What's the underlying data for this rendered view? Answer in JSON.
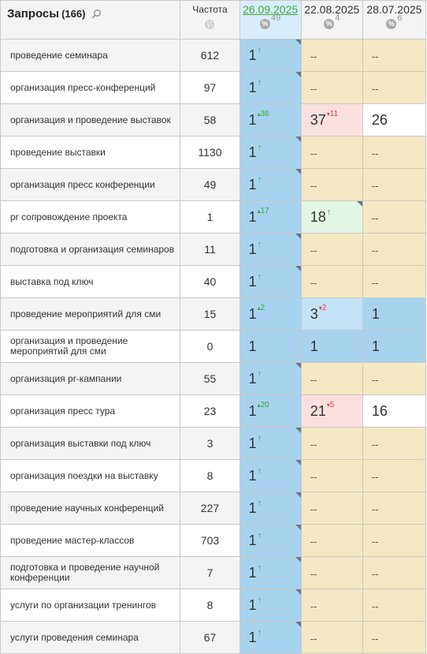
{
  "header": {
    "title": "Запросы",
    "count": "(166)",
    "freq_label": "Частота",
    "dates": [
      {
        "label": "26.09.2025",
        "count": "49"
      },
      {
        "label": "22.08.2025",
        "count": "4"
      },
      {
        "label": "28.07.2025",
        "count": "6"
      }
    ],
    "percent_icon": "%"
  },
  "colors": {
    "blue": "#a8d3ef",
    "lightblue": "#c4e1f6",
    "yellow": "#f5e8c4",
    "pink": "#fbe0e0",
    "green": "#e3f6e6",
    "link_green": "#3fa83f",
    "up_green": "#2fae2f",
    "down_red": "#e04040"
  },
  "icons": {
    "search": "magnifier-icon",
    "globe": "globe-icon",
    "corner": "corner-marker"
  },
  "rows": [
    {
      "query": "проведение семинара",
      "freq": "612",
      "c1": {
        "val": "1",
        "arrow": "↑",
        "delta": "",
        "dir": "",
        "color": "blue",
        "corner": true
      },
      "c2": {
        "val": "--",
        "arrow": "",
        "delta": "",
        "dir": "",
        "color": "yellow",
        "corner": false
      },
      "c3": {
        "val": "--",
        "arrow": "",
        "delta": "",
        "dir": "",
        "color": "yellow",
        "corner": false
      }
    },
    {
      "query": "организация пресс-конференций",
      "freq": "97",
      "c1": {
        "val": "1",
        "arrow": "↑",
        "delta": "",
        "dir": "",
        "color": "blue",
        "corner": true
      },
      "c2": {
        "val": "--",
        "arrow": "",
        "delta": "",
        "dir": "",
        "color": "yellow",
        "corner": false
      },
      "c3": {
        "val": "--",
        "arrow": "",
        "delta": "",
        "dir": "",
        "color": "yellow",
        "corner": false
      }
    },
    {
      "query": "организация и проведение выставок",
      "freq": "58",
      "c1": {
        "val": "1",
        "arrow": "",
        "delta": "36",
        "dir": "up",
        "color": "blue",
        "corner": false
      },
      "c2": {
        "val": "37",
        "arrow": "",
        "delta": "11",
        "dir": "down",
        "color": "pink",
        "corner": false
      },
      "c3": {
        "val": "26",
        "arrow": "",
        "delta": "",
        "dir": "",
        "color": "white",
        "corner": false
      }
    },
    {
      "query": "проведение выставки",
      "freq": "1130",
      "c1": {
        "val": "1",
        "arrow": "↑",
        "delta": "",
        "dir": "",
        "color": "blue",
        "corner": true
      },
      "c2": {
        "val": "--",
        "arrow": "",
        "delta": "",
        "dir": "",
        "color": "yellow",
        "corner": false
      },
      "c3": {
        "val": "--",
        "arrow": "",
        "delta": "",
        "dir": "",
        "color": "yellow",
        "corner": false
      }
    },
    {
      "query": "организация пресс конференции",
      "freq": "49",
      "c1": {
        "val": "1",
        "arrow": "↑",
        "delta": "",
        "dir": "",
        "color": "blue",
        "corner": true
      },
      "c2": {
        "val": "--",
        "arrow": "",
        "delta": "",
        "dir": "",
        "color": "yellow",
        "corner": false
      },
      "c3": {
        "val": "--",
        "arrow": "",
        "delta": "",
        "dir": "",
        "color": "yellow",
        "corner": false
      }
    },
    {
      "query": "pr сопровождение проекта",
      "freq": "1",
      "c1": {
        "val": "1",
        "arrow": "",
        "delta": "17",
        "dir": "up",
        "color": "blue",
        "corner": false
      },
      "c2": {
        "val": "18",
        "arrow": "↑",
        "delta": "",
        "dir": "",
        "color": "green",
        "corner": true
      },
      "c3": {
        "val": "--",
        "arrow": "",
        "delta": "",
        "dir": "",
        "color": "yellow",
        "corner": false
      }
    },
    {
      "query": "подготовка и организация семинаров",
      "freq": "11",
      "c1": {
        "val": "1",
        "arrow": "↑",
        "delta": "",
        "dir": "",
        "color": "blue",
        "corner": true
      },
      "c2": {
        "val": "--",
        "arrow": "",
        "delta": "",
        "dir": "",
        "color": "yellow",
        "corner": false
      },
      "c3": {
        "val": "--",
        "arrow": "",
        "delta": "",
        "dir": "",
        "color": "yellow",
        "corner": false
      }
    },
    {
      "query": "выставка под ключ",
      "freq": "40",
      "c1": {
        "val": "1",
        "arrow": "↑",
        "delta": "",
        "dir": "",
        "color": "blue",
        "corner": true
      },
      "c2": {
        "val": "--",
        "arrow": "",
        "delta": "",
        "dir": "",
        "color": "yellow",
        "corner": false
      },
      "c3": {
        "val": "--",
        "arrow": "",
        "delta": "",
        "dir": "",
        "color": "yellow",
        "corner": false
      }
    },
    {
      "query": "проведение мероприятий для сми",
      "freq": "15",
      "c1": {
        "val": "1",
        "arrow": "",
        "delta": "2",
        "dir": "up",
        "color": "blue",
        "corner": false
      },
      "c2": {
        "val": "3",
        "arrow": "",
        "delta": "2",
        "dir": "down",
        "color": "lightblue",
        "corner": false
      },
      "c3": {
        "val": "1",
        "arrow": "",
        "delta": "",
        "dir": "",
        "color": "blue",
        "corner": false
      }
    },
    {
      "query": "организация и проведение мероприятий для сми",
      "freq": "0",
      "c1": {
        "val": "1",
        "arrow": "",
        "delta": "",
        "dir": "",
        "color": "blue",
        "corner": false
      },
      "c2": {
        "val": "1",
        "arrow": "",
        "delta": "",
        "dir": "",
        "color": "blue",
        "corner": false
      },
      "c3": {
        "val": "1",
        "arrow": "",
        "delta": "",
        "dir": "",
        "color": "blue",
        "corner": false
      }
    },
    {
      "query": "организация pr-кампании",
      "freq": "55",
      "c1": {
        "val": "1",
        "arrow": "↑",
        "delta": "",
        "dir": "",
        "color": "blue",
        "corner": true
      },
      "c2": {
        "val": "--",
        "arrow": "",
        "delta": "",
        "dir": "",
        "color": "yellow",
        "corner": false
      },
      "c3": {
        "val": "--",
        "arrow": "",
        "delta": "",
        "dir": "",
        "color": "yellow",
        "corner": false
      }
    },
    {
      "query": "организация пресс тура",
      "freq": "23",
      "c1": {
        "val": "1",
        "arrow": "",
        "delta": "20",
        "dir": "up",
        "color": "blue",
        "corner": false
      },
      "c2": {
        "val": "21",
        "arrow": "",
        "delta": "5",
        "dir": "down",
        "color": "pink",
        "corner": false
      },
      "c3": {
        "val": "16",
        "arrow": "",
        "delta": "",
        "dir": "",
        "color": "white",
        "corner": false
      }
    },
    {
      "query": "организация выставки под ключ",
      "freq": "3",
      "c1": {
        "val": "1",
        "arrow": "↑",
        "delta": "",
        "dir": "",
        "color": "blue",
        "corner": true
      },
      "c2": {
        "val": "--",
        "arrow": "",
        "delta": "",
        "dir": "",
        "color": "yellow",
        "corner": false
      },
      "c3": {
        "val": "--",
        "arrow": "",
        "delta": "",
        "dir": "",
        "color": "yellow",
        "corner": false
      }
    },
    {
      "query": "организация поездки на выставку",
      "freq": "8",
      "c1": {
        "val": "1",
        "arrow": "↑",
        "delta": "",
        "dir": "",
        "color": "blue",
        "corner": true
      },
      "c2": {
        "val": "--",
        "arrow": "",
        "delta": "",
        "dir": "",
        "color": "yellow",
        "corner": false
      },
      "c3": {
        "val": "--",
        "arrow": "",
        "delta": "",
        "dir": "",
        "color": "yellow",
        "corner": false
      }
    },
    {
      "query": "проведение научных конференций",
      "freq": "227",
      "c1": {
        "val": "1",
        "arrow": "↑",
        "delta": "",
        "dir": "",
        "color": "blue",
        "corner": true
      },
      "c2": {
        "val": "--",
        "arrow": "",
        "delta": "",
        "dir": "",
        "color": "yellow",
        "corner": false
      },
      "c3": {
        "val": "--",
        "arrow": "",
        "delta": "",
        "dir": "",
        "color": "yellow",
        "corner": false
      }
    },
    {
      "query": "проведение мастер-классов",
      "freq": "703",
      "c1": {
        "val": "1",
        "arrow": "↑",
        "delta": "",
        "dir": "",
        "color": "blue",
        "corner": true
      },
      "c2": {
        "val": "--",
        "arrow": "",
        "delta": "",
        "dir": "",
        "color": "yellow",
        "corner": false
      },
      "c3": {
        "val": "--",
        "arrow": "",
        "delta": "",
        "dir": "",
        "color": "yellow",
        "corner": false
      }
    },
    {
      "query": "подготовка и проведение научной конференции",
      "freq": "7",
      "c1": {
        "val": "1",
        "arrow": "↑",
        "delta": "",
        "dir": "",
        "color": "blue",
        "corner": true
      },
      "c2": {
        "val": "--",
        "arrow": "",
        "delta": "",
        "dir": "",
        "color": "yellow",
        "corner": false
      },
      "c3": {
        "val": "--",
        "arrow": "",
        "delta": "",
        "dir": "",
        "color": "yellow",
        "corner": false
      }
    },
    {
      "query": "услуги по организации тренингов",
      "freq": "8",
      "c1": {
        "val": "1",
        "arrow": "↑",
        "delta": "",
        "dir": "",
        "color": "blue",
        "corner": true
      },
      "c2": {
        "val": "--",
        "arrow": "",
        "delta": "",
        "dir": "",
        "color": "yellow",
        "corner": false
      },
      "c3": {
        "val": "--",
        "arrow": "",
        "delta": "",
        "dir": "",
        "color": "yellow",
        "corner": false
      }
    },
    {
      "query": "услуги проведения семинара",
      "freq": "67",
      "c1": {
        "val": "1",
        "arrow": "↑",
        "delta": "",
        "dir": "",
        "color": "blue",
        "corner": true
      },
      "c2": {
        "val": "--",
        "arrow": "",
        "delta": "",
        "dir": "",
        "color": "yellow",
        "corner": false
      },
      "c3": {
        "val": "--",
        "arrow": "",
        "delta": "",
        "dir": "",
        "color": "yellow",
        "corner": false
      }
    }
  ]
}
